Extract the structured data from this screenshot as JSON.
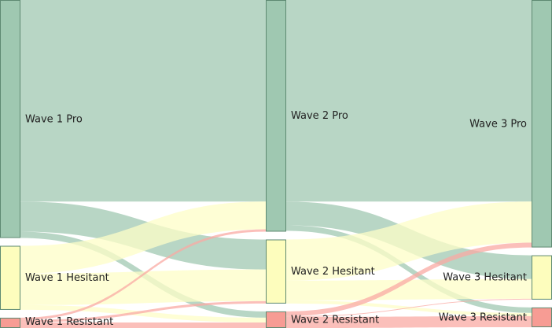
{
  "chart_data": {
    "type": "sankey",
    "title": "",
    "stages": [
      "Wave 1",
      "Wave 2",
      "Wave 3"
    ],
    "nodes": [
      {
        "id": "w1_pro",
        "label": "Wave 1 Pro",
        "stage": 0,
        "category": "pro"
      },
      {
        "id": "w1_hes",
        "label": "Wave 1 Hesitant",
        "stage": 0,
        "category": "hesitant"
      },
      {
        "id": "w1_res",
        "label": "Wave 1 Resistant",
        "stage": 0,
        "category": "resistant"
      },
      {
        "id": "w2_pro",
        "label": "Wave 2 Pro",
        "stage": 1,
        "category": "pro"
      },
      {
        "id": "w2_hes",
        "label": "Wave 2 Hesitant",
        "stage": 1,
        "category": "hesitant"
      },
      {
        "id": "w2_res",
        "label": "Wave 2 Resistant",
        "stage": 1,
        "category": "resistant"
      },
      {
        "id": "w3_pro",
        "label": "Wave 3 Pro",
        "stage": 2,
        "category": "pro"
      },
      {
        "id": "w3_hes",
        "label": "Wave 3 Hesitant",
        "stage": 2,
        "category": "hesitant"
      },
      {
        "id": "w3_res",
        "label": "Wave 3 Resistant",
        "stage": 2,
        "category": "resistant"
      }
    ],
    "links": [
      {
        "source": "w1_pro",
        "target": "w2_pro",
        "value": 255
      },
      {
        "source": "w1_pro",
        "target": "w2_hes",
        "value": 38
      },
      {
        "source": "w1_pro",
        "target": "w2_res",
        "value": 8
      },
      {
        "source": "w1_hes",
        "target": "w2_pro",
        "value": 35
      },
      {
        "source": "w1_hes",
        "target": "w2_hes",
        "value": 40
      },
      {
        "source": "w1_hes",
        "target": "w2_res",
        "value": 6
      },
      {
        "source": "w1_res",
        "target": "w2_pro",
        "value": 3
      },
      {
        "source": "w1_res",
        "target": "w2_hes",
        "value": 3
      },
      {
        "source": "w1_res",
        "target": "w2_res",
        "value": 7
      },
      {
        "source": "w2_pro",
        "target": "w3_pro",
        "value": 255
      },
      {
        "source": "w2_pro",
        "target": "w3_hes",
        "value": 30
      },
      {
        "source": "w2_pro",
        "target": "w3_res",
        "value": 7
      },
      {
        "source": "w2_hes",
        "target": "w3_pro",
        "value": 52
      },
      {
        "source": "w2_hes",
        "target": "w3_hes",
        "value": 25
      },
      {
        "source": "w2_hes",
        "target": "w3_res",
        "value": 4
      },
      {
        "source": "w2_res",
        "target": "w3_pro",
        "value": 6
      },
      {
        "source": "w2_res",
        "target": "w3_hes",
        "value": 1
      },
      {
        "source": "w2_res",
        "target": "w3_res",
        "value": 14
      }
    ],
    "colors": {
      "pro_node": "#9fc8b1",
      "hesitant_node": "#fdfdbd",
      "resistant_node": "#f79c94",
      "pro_link": "#b4d4c2",
      "hesitant_link": "#fdfdc7",
      "resistant_link": "#f9aaa3",
      "node_border": "#5e8a72"
    }
  }
}
